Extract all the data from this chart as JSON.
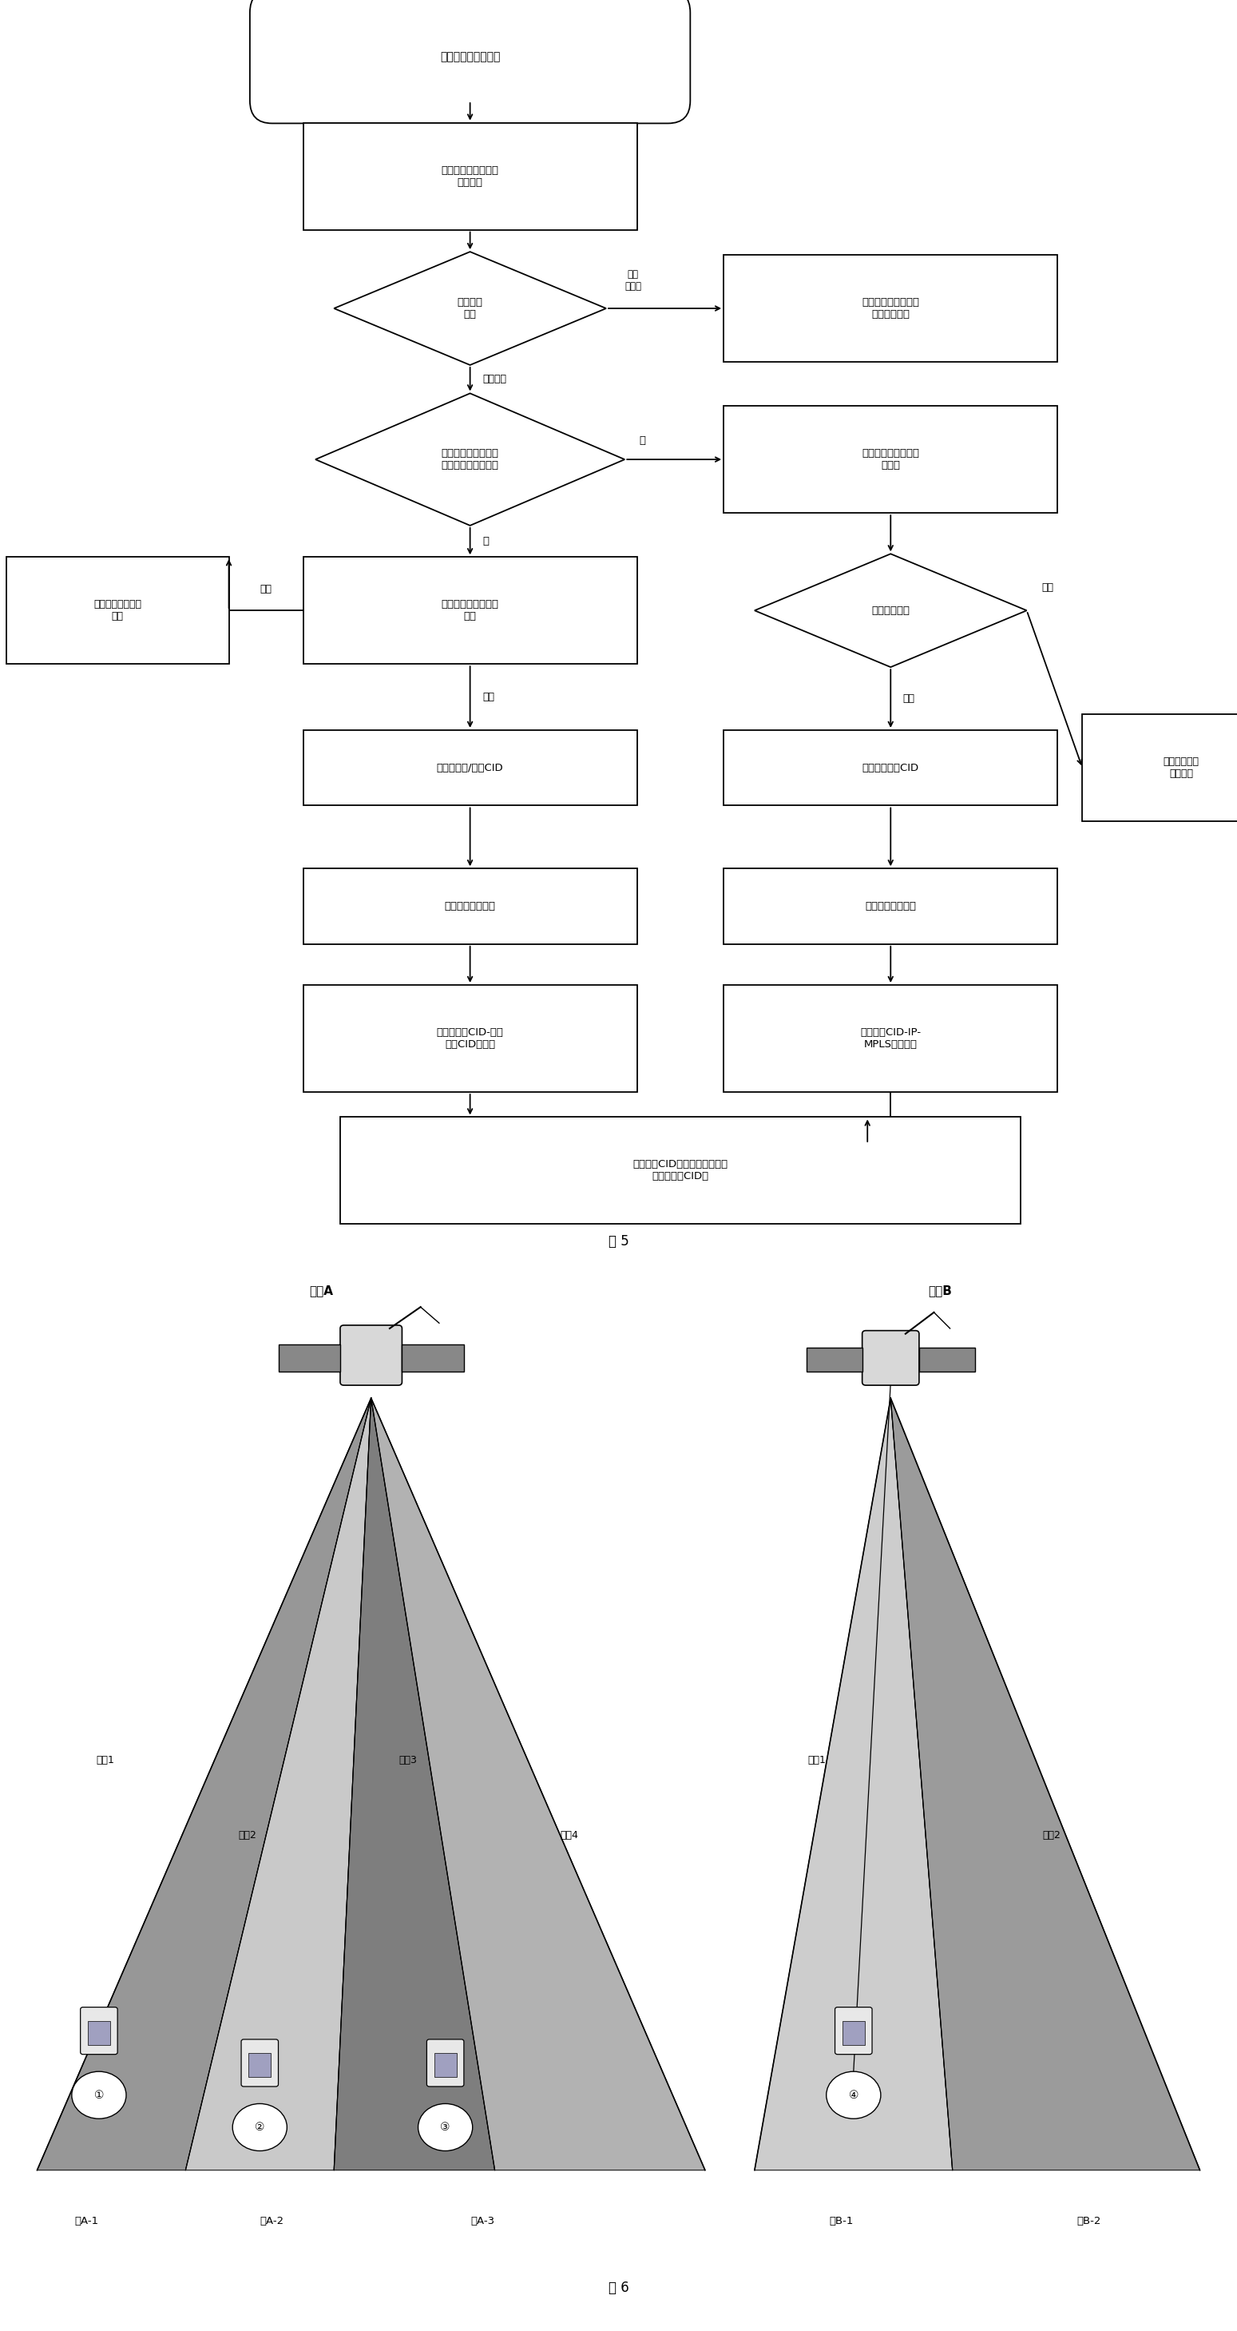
{
  "fig5_title": "图 5",
  "fig6_title": "图 6",
  "flowchart": {
    "start_text": "如果为业务连接请求",
    "extract_text": "提取业务连接请求的\n具体参数",
    "access_text": "接入控制\n判断",
    "reject_text": "生成业务请求拒绝信\n息，发给用户",
    "lbl_no_allow": "连接\n不允许",
    "judge_text": "判断目的用户与源用\n户是否处于同一小区",
    "lbl_allow": "连接允许",
    "netlayer_text": "将相应请求信息传给\n网络层",
    "lbl_no": "否",
    "fail_left_text": "给用户发请求失败\n信息",
    "direct_text": "直接跟目的用户建立\n连接",
    "lbl_yes": "是",
    "lbl_fail": "失败",
    "lbl_success": "成功",
    "netpath_text": "网络路径建立",
    "fail_right_text": "给用户发请求\n失败信息",
    "assign_ud_text": "分配业务上/下行CID",
    "assign_u_text": "分配上行业务CID",
    "reserve_l_text": "为该连接预留资源",
    "reserve_r_text": "为该连接预留资源",
    "map_l_text": "生成源业务CID-目的\n业务CID映射表",
    "map_r_text": "生成业务CID-IP-\nMPLS映射信息",
    "frame_text": "利用管理CID成帧发给相应用户\n（包含业务CID）"
  },
  "fig6": {
    "sat_a_label": "卫星A",
    "sat_b_label": "卫星B",
    "beams_a": [
      "波束1",
      "波束2",
      "波束3",
      "波束4"
    ],
    "beams_b": [
      "波束1",
      "波束2"
    ],
    "zones_a": [
      "域A-1",
      "域A-2",
      "域A-3"
    ],
    "zones_b": [
      "域B-1",
      "域B-2"
    ],
    "users_a": [
      "①",
      "②",
      "③"
    ],
    "users_b": [
      "④"
    ],
    "cone_a_colors": [
      "#909090",
      "#b8b8b8",
      "#787878",
      "#a0a0a0"
    ],
    "cone_b_colors": [
      "#c0c0c0",
      "#909090"
    ]
  }
}
